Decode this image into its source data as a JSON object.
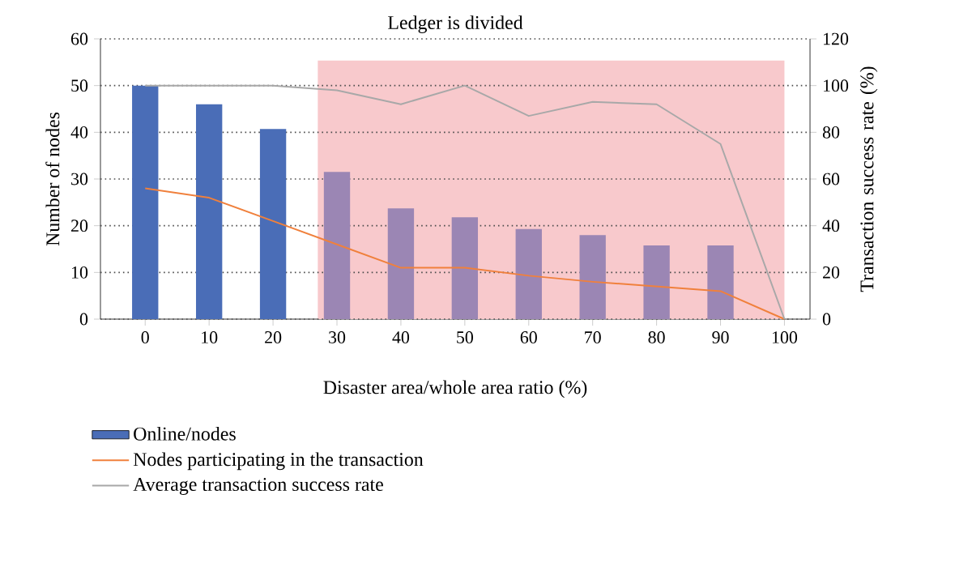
{
  "chart_data": {
    "type": "bar",
    "title": "Ledger is divided",
    "xlabel": "Disaster area/whole area ratio (%)",
    "ylabel": "Number of nodes",
    "y2label": "Transaction success rate (%)",
    "x": [
      0,
      10,
      20,
      30,
      40,
      50,
      60,
      70,
      80,
      90,
      100
    ],
    "xlim": [
      -7,
      104
    ],
    "xticks": [
      0,
      10,
      20,
      30,
      40,
      50,
      60,
      70,
      80,
      90,
      100
    ],
    "ylim": [
      0,
      60
    ],
    "yticks": [
      0,
      10,
      20,
      30,
      40,
      50,
      60
    ],
    "y2lim": [
      0,
      120
    ],
    "y2ticks": [
      0,
      20,
      40,
      60,
      80,
      100,
      120
    ],
    "grid": "y",
    "legend": "bottom left",
    "marker": "none",
    "bands": [
      {
        "axis": "x",
        "from": 27,
        "to": 100,
        "color": "#f8c9cc"
      }
    ],
    "series": [
      {
        "name": "Online/nodes",
        "color": "#4a6db7",
        "colors": [
          "#4a6db7",
          "#4a6db7",
          "#4a6db7",
          "#9b86b4",
          "#9b86b4",
          "#9b86b4",
          "#9b86b4",
          "#9b86b4",
          "#9b86b4",
          "#9b86b4",
          "#9b86b4"
        ],
        "values": [
          50,
          46,
          40.7,
          31.5,
          23.7,
          21.8,
          19.3,
          18,
          15.8,
          15.8,
          null
        ]
      },
      {
        "name": "Nodes participating in the transaction",
        "type": "line",
        "color": "#f0803c",
        "values": [
          28,
          26,
          21,
          16,
          11,
          11,
          9.3,
          8,
          7,
          6,
          0
        ]
      },
      {
        "name": "Average transaction success rate",
        "type": "line",
        "axis": "y2",
        "color": "#a8a8a8",
        "values": [
          100,
          100,
          100,
          98,
          92,
          100,
          87,
          93,
          92,
          75,
          0
        ]
      }
    ]
  }
}
